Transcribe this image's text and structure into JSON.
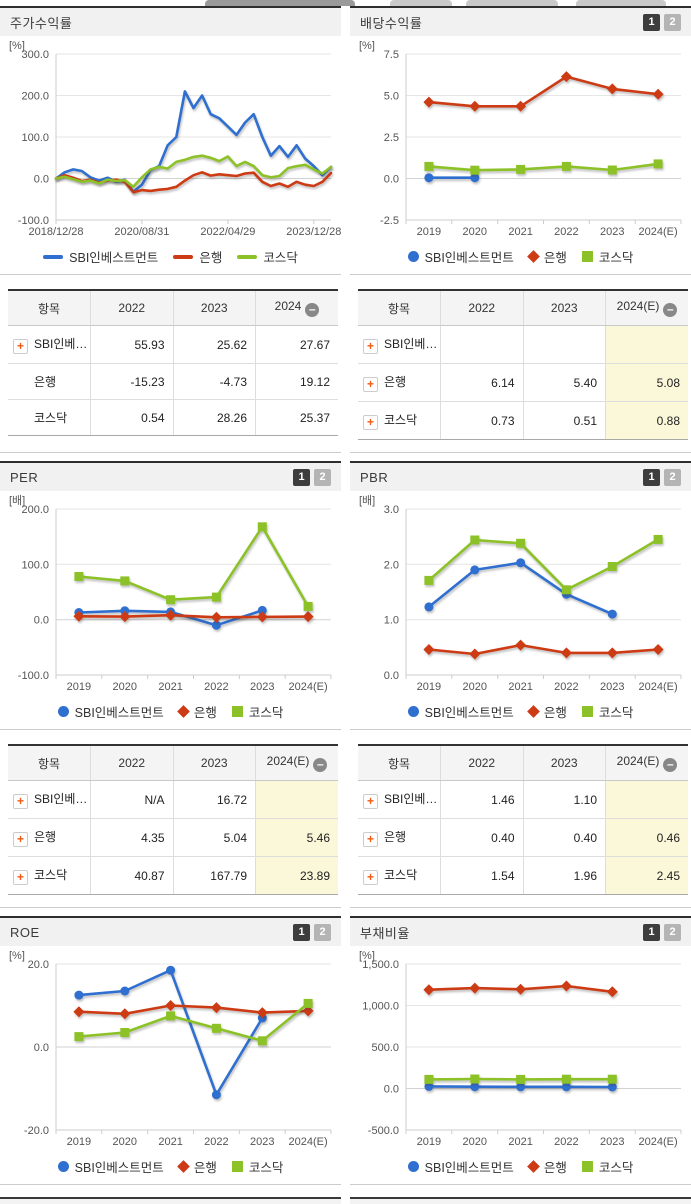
{
  "pager": {
    "page1": "1",
    "page2": "2"
  },
  "series_defs": [
    {
      "name": "SBI인베스트먼트",
      "color": "#2f6fd0",
      "marker": "circle"
    },
    {
      "name": "은행",
      "color": "#cd3b14",
      "marker": "diamond"
    },
    {
      "name": "코스닥",
      "color": "#8cc227",
      "marker": "square"
    }
  ],
  "panels": [
    {
      "title": "주가수익률",
      "unit": "[%]",
      "has_pager": false
    },
    {
      "title": "배당수익률",
      "unit": "[%]",
      "has_pager": true
    },
    {
      "title": "PER",
      "unit": "[배]",
      "has_pager": true
    },
    {
      "title": "PBR",
      "unit": "[배]",
      "has_pager": true
    },
    {
      "title": "ROE",
      "unit": "[%]",
      "has_pager": true
    },
    {
      "title": "부채비율",
      "unit": "[%]",
      "has_pager": true
    }
  ],
  "chart_data": [
    {
      "type": "line",
      "title": "주가수익률",
      "unit": "[%]",
      "x_type": "continuous",
      "markers": false,
      "legend_marker": "line",
      "ylim": [
        -100,
        300
      ],
      "yticks": [
        {
          "v": 300,
          "label": "300.0"
        },
        {
          "v": 200,
          "label": "200.0"
        },
        {
          "v": 100,
          "label": "100.0"
        },
        {
          "v": 0,
          "label": "0.0"
        },
        {
          "v": -100,
          "label": "-100.0"
        }
      ],
      "xticks": [
        {
          "f": 0,
          "label": "2018/12/28"
        },
        {
          "f": 0.3125,
          "label": "2020/08/31"
        },
        {
          "f": 0.625,
          "label": "2022/04/29"
        },
        {
          "f": 0.9375,
          "label": "2023/12/28"
        }
      ],
      "series": [
        {
          "name": "SBI인베스트먼트",
          "values": [
            0,
            15,
            22,
            18,
            3,
            -5,
            2,
            -8,
            -3,
            -32,
            -15,
            20,
            30,
            80,
            100,
            210,
            170,
            200,
            155,
            145,
            125,
            105,
            135,
            155,
            100,
            55,
            78,
            52,
            80,
            48,
            30,
            8,
            28
          ]
        },
        {
          "name": "은행",
          "values": [
            0,
            8,
            2,
            -6,
            -3,
            -10,
            -5,
            -3,
            -8,
            -33,
            -28,
            -30,
            -27,
            -25,
            -20,
            -5,
            8,
            15,
            7,
            10,
            8,
            6,
            12,
            14,
            -8,
            -18,
            -12,
            -20,
            -8,
            -15,
            -18,
            -8,
            13
          ]
        },
        {
          "name": "코스닥",
          "values": [
            0,
            4,
            -2,
            -8,
            -5,
            -12,
            -3,
            -6,
            -4,
            -20,
            3,
            22,
            28,
            24,
            40,
            45,
            52,
            55,
            50,
            42,
            53,
            30,
            40,
            30,
            8,
            3,
            6,
            25,
            30,
            33,
            22,
            12,
            28
          ]
        }
      ]
    },
    {
      "type": "line",
      "title": "배당수익률",
      "unit": "[%]",
      "x_type": "categorical",
      "markers": true,
      "categories": [
        "2019",
        "2020",
        "2021",
        "2022",
        "2023",
        "2024(E)"
      ],
      "ylim": [
        -2.5,
        7.5
      ],
      "yticks": [
        {
          "v": 7.5,
          "label": "7.5"
        },
        {
          "v": 5,
          "label": "5.0"
        },
        {
          "v": 2.5,
          "label": "2.5"
        },
        {
          "v": 0,
          "label": "0.0"
        },
        {
          "v": -2.5,
          "label": "-2.5"
        }
      ],
      "series": [
        {
          "name": "SBI인베스트먼트",
          "values": [
            0.05,
            0.05,
            null,
            null,
            null,
            null
          ]
        },
        {
          "name": "은행",
          "values": [
            4.6,
            4.35,
            4.35,
            6.14,
            5.4,
            5.08
          ]
        },
        {
          "name": "코스닥",
          "values": [
            0.73,
            0.5,
            0.55,
            0.73,
            0.51,
            0.88
          ]
        }
      ]
    },
    {
      "type": "line",
      "title": "PER",
      "unit": "[배]",
      "x_type": "categorical",
      "markers": true,
      "categories": [
        "2019",
        "2020",
        "2021",
        "2022",
        "2023",
        "2024(E)"
      ],
      "ylim": [
        -100,
        200
      ],
      "yticks": [
        {
          "v": 200,
          "label": "200.0"
        },
        {
          "v": 100,
          "label": "100.0"
        },
        {
          "v": 0,
          "label": "0.0"
        },
        {
          "v": -100,
          "label": "-100.0"
        }
      ],
      "series": [
        {
          "name": "SBI인베스트먼트",
          "values": [
            13,
            16,
            14,
            -10,
            16.72,
            null
          ]
        },
        {
          "name": "은행",
          "values": [
            6,
            5.5,
            8,
            4.35,
            5.04,
            5.46
          ]
        },
        {
          "name": "코스닥",
          "values": [
            78,
            70,
            36,
            40.87,
            167.79,
            23.89
          ]
        }
      ]
    },
    {
      "type": "line",
      "title": "PBR",
      "unit": "[배]",
      "x_type": "categorical",
      "markers": true,
      "categories": [
        "2019",
        "2020",
        "2021",
        "2022",
        "2023",
        "2024(E)"
      ],
      "ylim": [
        0,
        3
      ],
      "yticks": [
        {
          "v": 3,
          "label": "3.0"
        },
        {
          "v": 2,
          "label": "2.0"
        },
        {
          "v": 1,
          "label": "1.0"
        },
        {
          "v": 0,
          "label": "0.0"
        }
      ],
      "series": [
        {
          "name": "SBI인베스트먼트",
          "values": [
            1.23,
            1.9,
            2.03,
            1.46,
            1.1,
            null
          ]
        },
        {
          "name": "은행",
          "values": [
            0.46,
            0.38,
            0.54,
            0.4,
            0.4,
            0.46
          ]
        },
        {
          "name": "코스닥",
          "values": [
            1.71,
            2.44,
            2.38,
            1.54,
            1.96,
            2.45
          ]
        }
      ]
    },
    {
      "type": "line",
      "title": "ROE",
      "unit": "[%]",
      "x_type": "categorical",
      "markers": true,
      "categories": [
        "2019",
        "2020",
        "2021",
        "2022",
        "2023",
        "2024(E)"
      ],
      "ylim": [
        -20,
        20
      ],
      "yticks": [
        {
          "v": 20,
          "label": "20.0"
        },
        {
          "v": 0,
          "label": "0.0"
        },
        {
          "v": -20,
          "label": "-20.0"
        }
      ],
      "series": [
        {
          "name": "SBI인베스트먼트",
          "values": [
            12.5,
            13.5,
            18.5,
            -11.5,
            7,
            null
          ]
        },
        {
          "name": "은행",
          "values": [
            8.5,
            8,
            10,
            9.5,
            8.3,
            8.7
          ]
        },
        {
          "name": "코스닥",
          "values": [
            2.5,
            3.5,
            7.5,
            4.5,
            1.5,
            10.5
          ]
        }
      ]
    },
    {
      "type": "line",
      "title": "부채비율",
      "unit": "[%]",
      "x_type": "categorical",
      "markers": true,
      "categories": [
        "2019",
        "2020",
        "2021",
        "2022",
        "2023",
        "2024(E)"
      ],
      "ylim": [
        -500,
        1500
      ],
      "yticks": [
        {
          "v": 1500,
          "label": "1,500.0"
        },
        {
          "v": 1000,
          "label": "1,000.0"
        },
        {
          "v": 500,
          "label": "500.0"
        },
        {
          "v": 0,
          "label": "0.0"
        },
        {
          "v": -500,
          "label": "-500.0"
        }
      ],
      "series": [
        {
          "name": "SBI인베스트먼트",
          "values": [
            25,
            22,
            20,
            20,
            18,
            null
          ]
        },
        {
          "name": "은행",
          "values": [
            1190,
            1210,
            1195,
            1235,
            1165,
            null
          ]
        },
        {
          "name": "코스닥",
          "values": [
            110,
            115,
            110,
            112,
            112,
            null
          ]
        }
      ]
    }
  ],
  "tables": [
    {
      "headers": [
        "항목",
        "2022",
        "2023",
        "2024"
      ],
      "minus": true,
      "highlight": false,
      "rows": [
        {
          "label": "SBI인베…",
          "plus": true,
          "values": [
            "55.93",
            "25.62",
            "27.67"
          ]
        },
        {
          "label": "은행",
          "plus": false,
          "values": [
            "-15.23",
            "-4.73",
            "19.12"
          ]
        },
        {
          "label": "코스닥",
          "plus": false,
          "values": [
            "0.54",
            "28.26",
            "25.37"
          ]
        }
      ]
    },
    {
      "headers": [
        "항목",
        "2022",
        "2023",
        "2024(E)"
      ],
      "minus": true,
      "highlight": true,
      "rows": [
        {
          "label": "SBI인베…",
          "plus": true,
          "values": [
            "",
            "",
            ""
          ]
        },
        {
          "label": "은행",
          "plus": true,
          "values": [
            "6.14",
            "5.40",
            "5.08"
          ]
        },
        {
          "label": "코스닥",
          "plus": true,
          "values": [
            "0.73",
            "0.51",
            "0.88"
          ]
        }
      ]
    },
    {
      "headers": [
        "항목",
        "2022",
        "2023",
        "2024(E)"
      ],
      "minus": true,
      "highlight": true,
      "rows": [
        {
          "label": "SBI인베…",
          "plus": true,
          "values": [
            "N/A",
            "16.72",
            ""
          ]
        },
        {
          "label": "은행",
          "plus": true,
          "values": [
            "4.35",
            "5.04",
            "5.46"
          ]
        },
        {
          "label": "코스닥",
          "plus": true,
          "values": [
            "40.87",
            "167.79",
            "23.89"
          ]
        }
      ]
    },
    {
      "headers": [
        "항목",
        "2022",
        "2023",
        "2024(E)"
      ],
      "minus": true,
      "highlight": true,
      "rows": [
        {
          "label": "SBI인베…",
          "plus": true,
          "values": [
            "1.46",
            "1.10",
            ""
          ]
        },
        {
          "label": "은행",
          "plus": true,
          "values": [
            "0.40",
            "0.40",
            "0.46"
          ]
        },
        {
          "label": "코스닥",
          "plus": true,
          "values": [
            "1.54",
            "1.96",
            "2.45"
          ]
        }
      ]
    }
  ]
}
